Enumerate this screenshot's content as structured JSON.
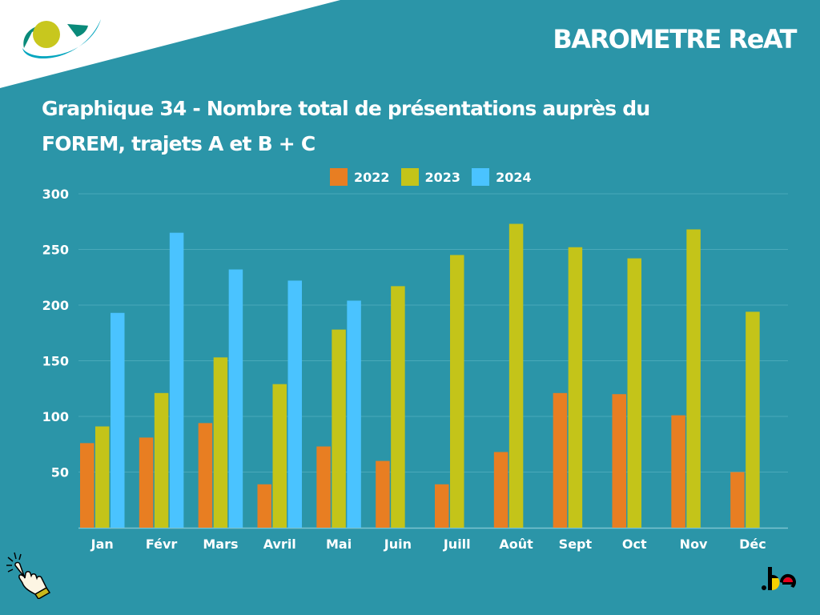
{
  "header": {
    "brand": "BAROMETRE ReAT",
    "title_line1": "Graphique 34 - Nombre total de présentations auprès du",
    "title_line2": "FOREM, trajets A et B + C"
  },
  "footer": {
    "be_label": ".be"
  },
  "colors": {
    "background": "#2b95a8",
    "s2022": "#e87e22",
    "s2023": "#c4c419",
    "s2024": "#4ac3ff"
  },
  "chart_data": {
    "type": "bar",
    "title": "Graphique 34 - Nombre total de présentations auprès du FOREM, trajets A et B + C",
    "xlabel": "",
    "ylabel": "",
    "categories": [
      "Jan",
      "Févr",
      "Mars",
      "Avril",
      "Mai",
      "Juin",
      "Juill",
      "Août",
      "Sept",
      "Oct",
      "Nov",
      "Déc"
    ],
    "series": [
      {
        "name": "2022",
        "color": "#e87e22",
        "values": [
          76,
          81,
          94,
          39,
          73,
          60,
          39,
          68,
          121,
          120,
          101,
          50
        ]
      },
      {
        "name": "2023",
        "color": "#c4c419",
        "values": [
          91,
          121,
          153,
          129,
          178,
          217,
          245,
          273,
          252,
          242,
          268,
          194
        ]
      },
      {
        "name": "2024",
        "color": "#4ac3ff",
        "values": [
          193,
          265,
          232,
          222,
          204,
          null,
          null,
          null,
          null,
          null,
          null,
          null
        ]
      }
    ],
    "ylim": [
      0,
      300
    ],
    "yticks": [
      50,
      100,
      150,
      200,
      250,
      300
    ],
    "grid": true,
    "legend_position": "top-center"
  }
}
